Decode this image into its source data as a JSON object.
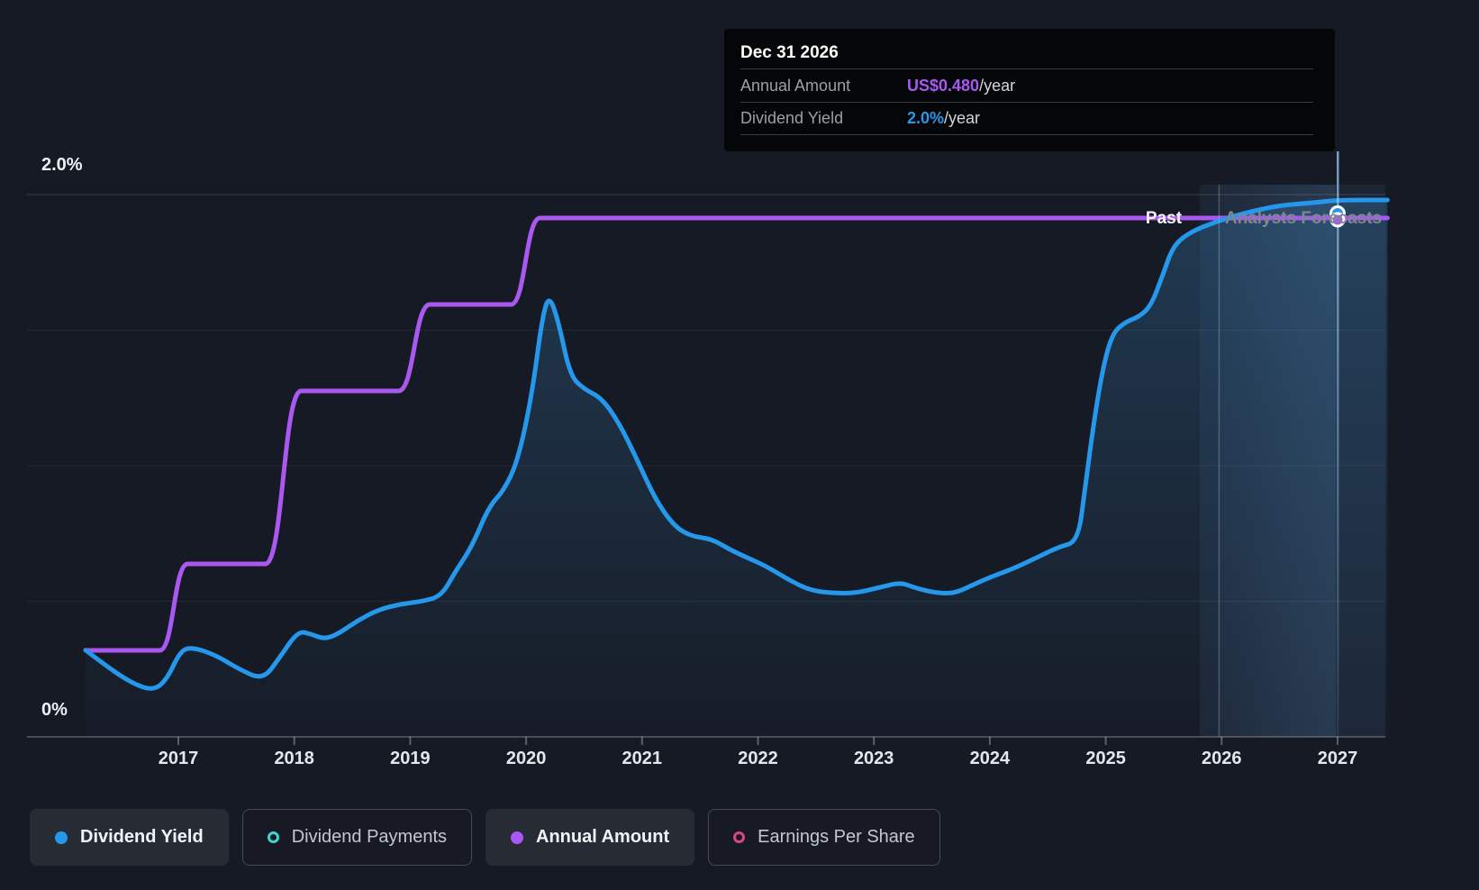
{
  "colors": {
    "background": "#161a24",
    "dividend_yield": "#2598ec",
    "dividend_payments": "#3fd8c4",
    "annual_amount": "#a958f2",
    "earnings_per_share": "#d74689",
    "tooltip_bg": "#050607",
    "grid": "rgba(255,255,255,0.07)"
  },
  "tooltip": {
    "date": "Dec 31 2026",
    "rows": [
      {
        "label": "Annual Amount",
        "value": "US$0.480",
        "suffix": "/year",
        "color": "#a958f2"
      },
      {
        "label": "Dividend Yield",
        "value": "2.0%",
        "suffix": "/year",
        "color": "#2598ec"
      }
    ]
  },
  "y_axis": {
    "labels": [
      {
        "text": "2.0%",
        "pct": 2.0
      },
      {
        "text": "0%",
        "pct": 0.0
      }
    ]
  },
  "x_axis": {
    "years": [
      "2017",
      "2018",
      "2019",
      "2020",
      "2021",
      "2022",
      "2023",
      "2024",
      "2025",
      "2026",
      "2027"
    ]
  },
  "annotations": {
    "past": "Past",
    "forecast": "Analysts Forecasts"
  },
  "legend": [
    {
      "label": "Dividend Yield",
      "color": "#2598ec",
      "active": true,
      "marker": "filled-dot"
    },
    {
      "label": "Dividend Payments",
      "color": "#3fd8c4",
      "active": false,
      "marker": "ring"
    },
    {
      "label": "Annual Amount",
      "color": "#a958f2",
      "active": true,
      "marker": "filled-dot"
    },
    {
      "label": "Earnings Per Share",
      "color": "#d74689",
      "active": false,
      "marker": "ring"
    }
  ],
  "chart_data": {
    "type": "line",
    "x_range": [
      2016.2,
      2027.43
    ],
    "y_axis_pct_range": [
      0,
      2.0
    ],
    "grid": "horizontal-only",
    "legend_position": "bottom",
    "forecast_divider_year": 2025.83,
    "hover_point": {
      "x_year": 2027.0,
      "date": "Dec 31 2026",
      "dividend_yield_pct": 2.0,
      "annual_amount_usd_per_year": 0.48
    },
    "series": [
      {
        "name": "Dividend Yield",
        "unit": "percent",
        "color": "#2598ec",
        "style": "smooth-area",
        "points": [
          [
            2016.2,
            0.32
          ],
          [
            2016.35,
            0.27
          ],
          [
            2016.59,
            0.2
          ],
          [
            2016.78,
            0.17
          ],
          [
            2016.9,
            0.21
          ],
          [
            2017.02,
            0.32
          ],
          [
            2017.13,
            0.33
          ],
          [
            2017.33,
            0.3
          ],
          [
            2017.52,
            0.25
          ],
          [
            2017.73,
            0.21
          ],
          [
            2017.87,
            0.29
          ],
          [
            2018.03,
            0.39
          ],
          [
            2018.14,
            0.38
          ],
          [
            2018.26,
            0.36
          ],
          [
            2018.38,
            0.38
          ],
          [
            2018.55,
            0.43
          ],
          [
            2018.73,
            0.47
          ],
          [
            2018.92,
            0.49
          ],
          [
            2019.11,
            0.5
          ],
          [
            2019.27,
            0.52
          ],
          [
            2019.39,
            0.61
          ],
          [
            2019.53,
            0.7
          ],
          [
            2019.68,
            0.85
          ],
          [
            2019.81,
            0.91
          ],
          [
            2019.93,
            1.02
          ],
          [
            2020.05,
            1.26
          ],
          [
            2020.14,
            1.55
          ],
          [
            2020.2,
            1.63
          ],
          [
            2020.28,
            1.53
          ],
          [
            2020.38,
            1.33
          ],
          [
            2020.51,
            1.28
          ],
          [
            2020.65,
            1.25
          ],
          [
            2020.8,
            1.16
          ],
          [
            2020.96,
            1.02
          ],
          [
            2021.11,
            0.88
          ],
          [
            2021.27,
            0.78
          ],
          [
            2021.42,
            0.74
          ],
          [
            2021.6,
            0.73
          ],
          [
            2021.76,
            0.69
          ],
          [
            2021.91,
            0.66
          ],
          [
            2022.07,
            0.63
          ],
          [
            2022.26,
            0.58
          ],
          [
            2022.45,
            0.54
          ],
          [
            2022.65,
            0.53
          ],
          [
            2022.84,
            0.53
          ],
          [
            2023.04,
            0.55
          ],
          [
            2023.23,
            0.57
          ],
          [
            2023.35,
            0.55
          ],
          [
            2023.54,
            0.53
          ],
          [
            2023.7,
            0.53
          ],
          [
            2023.85,
            0.56
          ],
          [
            2024.01,
            0.59
          ],
          [
            2024.2,
            0.62
          ],
          [
            2024.4,
            0.66
          ],
          [
            2024.59,
            0.7
          ],
          [
            2024.76,
            0.72
          ],
          [
            2024.82,
            0.91
          ],
          [
            2024.9,
            1.17
          ],
          [
            2024.98,
            1.37
          ],
          [
            2025.06,
            1.49
          ],
          [
            2025.17,
            1.53
          ],
          [
            2025.29,
            1.55
          ],
          [
            2025.39,
            1.59
          ],
          [
            2025.49,
            1.7
          ],
          [
            2025.58,
            1.81
          ],
          [
            2025.72,
            1.86
          ],
          [
            2025.95,
            1.9
          ],
          [
            2026.18,
            1.93
          ],
          [
            2026.49,
            1.96
          ],
          [
            2026.8,
            1.97
          ],
          [
            2027.0,
            1.98
          ],
          [
            2027.43,
            1.98
          ]
        ]
      },
      {
        "name": "Annual Amount",
        "unit": "usd_per_year",
        "color": "#a958f2",
        "style": "smooth-step",
        "points": [
          [
            2016.2,
            0.08
          ],
          [
            2016.84,
            0.08
          ],
          [
            2017.08,
            0.16
          ],
          [
            2017.75,
            0.16
          ],
          [
            2018.06,
            0.32
          ],
          [
            2018.9,
            0.32
          ],
          [
            2019.17,
            0.4
          ],
          [
            2019.87,
            0.4
          ],
          [
            2020.12,
            0.48
          ],
          [
            2027.43,
            0.48
          ]
        ]
      },
      {
        "name": "Dividend Payments",
        "unit": "usd",
        "color": "#3fd8c4",
        "plotted": false,
        "points": []
      },
      {
        "name": "Earnings Per Share",
        "unit": "usd",
        "color": "#d74689",
        "plotted": false,
        "points": []
      }
    ]
  }
}
